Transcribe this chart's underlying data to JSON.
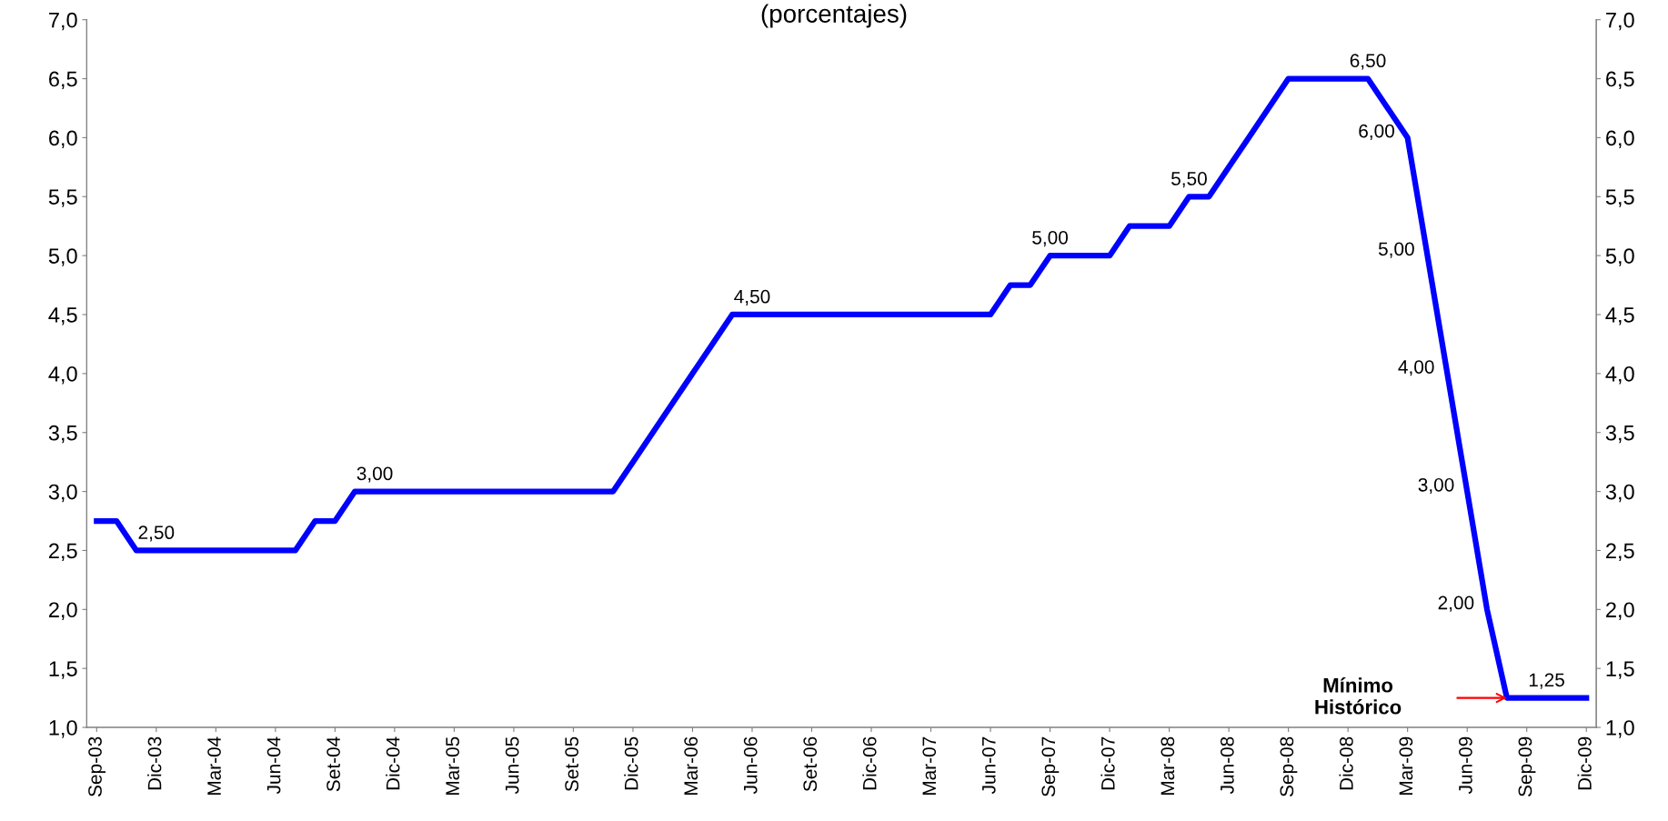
{
  "chart_data": {
    "type": "line",
    "title": "(porcentajes)",
    "categories": [
      "Sep-03",
      null,
      null,
      "Dic-03",
      null,
      null,
      "Mar-04",
      null,
      null,
      "Jun-04",
      null,
      null,
      "Set-04",
      null,
      null,
      "Dic-04",
      null,
      null,
      "Mar-05",
      null,
      null,
      "Jun-05",
      null,
      null,
      "Set-05",
      null,
      null,
      "Dic-05",
      null,
      null,
      "Mar-06",
      null,
      null,
      "Jun-06",
      null,
      null,
      "Set-06",
      null,
      null,
      "Dic-06",
      null,
      null,
      "Mar-07",
      null,
      null,
      "Jun-07",
      null,
      null,
      "Sep-07",
      null,
      null,
      "Dic-07",
      null,
      null,
      "Mar-08",
      null,
      null,
      "Jun-08",
      null,
      null,
      "Sep-08",
      null,
      null,
      "Dic-08",
      null,
      null,
      "Mar-09",
      null,
      null,
      "Jun-09",
      null,
      null,
      "Sep-09",
      null,
      null,
      "Dic-09"
    ],
    "series": [
      {
        "color": "#0000ff",
        "values": [
          2.75,
          2.75,
          2.5,
          2.5,
          2.5,
          2.5,
          2.5,
          2.5,
          2.5,
          2.5,
          2.5,
          2.75,
          2.75,
          3.0,
          3.0,
          3.0,
          3.0,
          3.0,
          3.0,
          3.0,
          3.0,
          3.0,
          3.0,
          3.0,
          3.0,
          3.0,
          3.0,
          3.25,
          3.5,
          3.75,
          4.0,
          4.25,
          4.5,
          4.5,
          4.5,
          4.5,
          4.5,
          4.5,
          4.5,
          4.5,
          4.5,
          4.5,
          4.5,
          4.5,
          4.5,
          4.5,
          4.75,
          4.75,
          5.0,
          5.0,
          5.0,
          5.0,
          5.25,
          5.25,
          5.25,
          5.5,
          5.5,
          5.75,
          6.0,
          6.25,
          6.5,
          6.5,
          6.5,
          6.5,
          6.5,
          6.25,
          6.0,
          5.0,
          4.0,
          3.0,
          2.0,
          1.25,
          1.25,
          1.25,
          1.25,
          1.25
        ],
        "value_labels": [
          null,
          null,
          null,
          "2,50",
          null,
          null,
          null,
          null,
          null,
          null,
          null,
          null,
          null,
          null,
          "3,00",
          null,
          null,
          null,
          null,
          null,
          null,
          null,
          null,
          null,
          null,
          null,
          null,
          null,
          null,
          null,
          null,
          null,
          null,
          "4,50",
          null,
          null,
          null,
          null,
          null,
          null,
          null,
          null,
          null,
          null,
          null,
          null,
          null,
          null,
          "5,00",
          null,
          null,
          null,
          null,
          null,
          null,
          "5,50",
          null,
          null,
          null,
          null,
          null,
          null,
          null,
          null,
          "6,50",
          null,
          "6,00",
          "5,00",
          "4,00",
          "3,00",
          "2,00",
          null,
          null,
          "1,25",
          null,
          null
        ]
      }
    ],
    "ylim": [
      1.0,
      7.0
    ],
    "yticks": [
      {
        "value": 1.0,
        "label": "1,0"
      },
      {
        "value": 1.5,
        "label": "1,5"
      },
      {
        "value": 2.0,
        "label": "2,0"
      },
      {
        "value": 2.5,
        "label": "2,5"
      },
      {
        "value": 3.0,
        "label": "3,0"
      },
      {
        "value": 3.5,
        "label": "3,5"
      },
      {
        "value": 4.0,
        "label": "4,0"
      },
      {
        "value": 4.5,
        "label": "4,5"
      },
      {
        "value": 5.0,
        "label": "5,0"
      },
      {
        "value": 5.5,
        "label": "5,5"
      },
      {
        "value": 6.0,
        "label": "6,0"
      },
      {
        "value": 6.5,
        "label": "6,5"
      },
      {
        "value": 7.0,
        "label": "7,0"
      }
    ],
    "y2lim": [
      1.0,
      7.0
    ],
    "y2ticks": [
      {
        "value": 1.0,
        "label": "1,0"
      },
      {
        "value": 1.5,
        "label": "1,5"
      },
      {
        "value": 2.0,
        "label": "2,0"
      },
      {
        "value": 2.5,
        "label": "2,5"
      },
      {
        "value": 3.0,
        "label": "3,0"
      },
      {
        "value": 3.5,
        "label": "3,5"
      },
      {
        "value": 4.0,
        "label": "4,0"
      },
      {
        "value": 4.5,
        "label": "4,5"
      },
      {
        "value": 5.0,
        "label": "5,0"
      },
      {
        "value": 5.5,
        "label": "5,5"
      },
      {
        "value": 6.0,
        "label": "6,0"
      },
      {
        "value": 6.5,
        "label": "6,5"
      },
      {
        "value": 7.0,
        "label": "7,0"
      }
    ],
    "annotations": [
      "Mínimo\nHistórico"
    ],
    "grid": false,
    "marker": "none",
    "line_style": "solid"
  }
}
